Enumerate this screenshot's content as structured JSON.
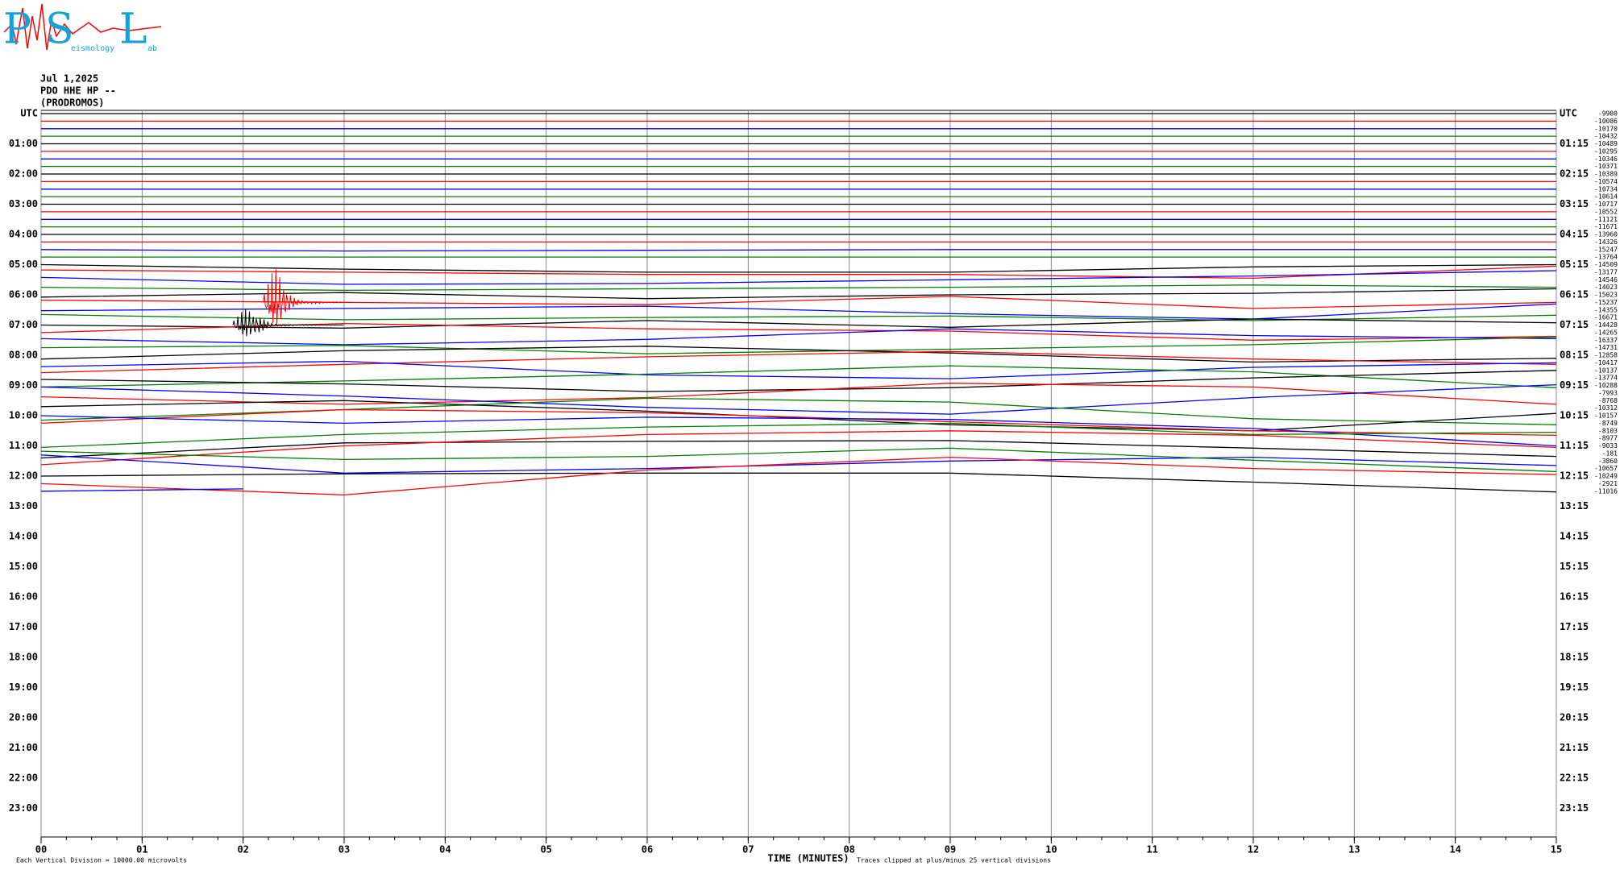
{
  "header": {
    "date": "Jul 1,2025",
    "station": "PDO HHE HP --",
    "name": "(PRODROMOS)"
  },
  "logo": {
    "letters": [
      "P",
      "S",
      "L"
    ],
    "small": [
      "eismology",
      "ab"
    ]
  },
  "chart_data": {
    "type": "helicorder",
    "xlabel": "TIME (MINUTES)",
    "note_left": "Each Vertical Division = 10000.00 microvolts",
    "note_right": "Traces clipped at plus/minus 25 vertical divisions",
    "xlim": [
      0,
      15
    ],
    "xticks": [
      {
        "value": 0,
        "label": "00"
      },
      {
        "value": 1,
        "label": "01"
      },
      {
        "value": 2,
        "label": "02"
      },
      {
        "value": 3,
        "label": "03"
      },
      {
        "value": 4,
        "label": "04"
      },
      {
        "value": 5,
        "label": "05"
      },
      {
        "value": 6,
        "label": "06"
      },
      {
        "value": 7,
        "label": "07"
      },
      {
        "value": 8,
        "label": "08"
      },
      {
        "value": 9,
        "label": "09"
      },
      {
        "value": 10,
        "label": "10"
      },
      {
        "value": 11,
        "label": "11"
      },
      {
        "value": 12,
        "label": "12"
      },
      {
        "value": 13,
        "label": "13"
      },
      {
        "value": 14,
        "label": "14"
      },
      {
        "value": 15,
        "label": "15"
      }
    ],
    "rows": 96,
    "left_labels": [
      "UTC",
      "01:00",
      "02:00",
      "03:00",
      "04:00",
      "05:00",
      "06:00",
      "07:00",
      "08:00",
      "09:00",
      "10:00",
      "11:00",
      "12:00",
      "13:00",
      "14:00",
      "15:00",
      "16:00",
      "17:00",
      "18:00",
      "19:00",
      "20:00",
      "21:00",
      "22:00",
      "23:00"
    ],
    "right_labels": [
      "UTC",
      "01:15",
      "02:15",
      "03:15",
      "04:15",
      "05:15",
      "06:15",
      "07:15",
      "08:15",
      "09:15",
      "10:15",
      "11:15",
      "12:15",
      "13:15",
      "14:15",
      "15:15",
      "16:15",
      "17:15",
      "18:15",
      "19:15",
      "20:15",
      "21:15",
      "22:15",
      "23:15"
    ],
    "trace_colors": [
      "#000000",
      "#ff0000",
      "#0000ff",
      "#007f00"
    ],
    "x": [
      0,
      3,
      6,
      9,
      12,
      15
    ],
    "traces": [
      {
        "offset": -9980,
        "values": [
          0,
          0,
          0,
          0,
          0,
          0
        ]
      },
      {
        "offset": -10086,
        "values": [
          0,
          0,
          0,
          0,
          0,
          0
        ]
      },
      {
        "offset": -10170,
        "values": [
          0,
          0,
          0,
          0,
          0,
          0
        ]
      },
      {
        "offset": -10432,
        "values": [
          0,
          0,
          0,
          0,
          0,
          0
        ]
      },
      {
        "offset": -10489,
        "values": [
          0,
          0,
          0,
          0,
          0,
          0
        ]
      },
      {
        "offset": -10295,
        "values": [
          0,
          0,
          0,
          0,
          0,
          0
        ]
      },
      {
        "offset": -10346,
        "values": [
          0,
          0,
          0,
          0,
          0,
          0
        ]
      },
      {
        "offset": -10371,
        "values": [
          0,
          0,
          0,
          0,
          0,
          0
        ]
      },
      {
        "offset": -10389,
        "values": [
          0,
          0,
          0,
          0,
          0,
          0
        ]
      },
      {
        "offset": -10574,
        "values": [
          0,
          0,
          0,
          0,
          0,
          0
        ]
      },
      {
        "offset": -10734,
        "values": [
          0,
          0,
          0,
          0,
          0,
          0
        ]
      },
      {
        "offset": -10614,
        "values": [
          0,
          0,
          0,
          0,
          0,
          0
        ]
      },
      {
        "offset": -10717,
        "values": [
          0,
          0,
          0,
          0,
          0,
          0
        ]
      },
      {
        "offset": -10552,
        "values": [
          0,
          0,
          0,
          0,
          0,
          0
        ]
      },
      {
        "offset": -11121,
        "values": [
          0,
          0,
          0,
          0,
          0,
          0
        ]
      },
      {
        "offset": -11671,
        "values": [
          0,
          0,
          0,
          0,
          0,
          0
        ]
      },
      {
        "offset": -13960,
        "values": [
          0,
          0,
          0,
          0,
          0,
          0
        ]
      },
      {
        "offset": -14326,
        "values": [
          0,
          0,
          0,
          0,
          0,
          0
        ]
      },
      {
        "offset": -15247,
        "values": [
          0,
          -0.2,
          -0.1,
          0,
          0,
          0
        ]
      },
      {
        "offset": -13764,
        "values": [
          0,
          0,
          0,
          0,
          0,
          0
        ]
      },
      {
        "offset": -14509,
        "values": [
          0,
          -0.6,
          -1,
          -1,
          -0.3,
          0
        ]
      },
      {
        "offset": -13177,
        "values": [
          0.3,
          0,
          -0.3,
          -0.3,
          -0.8,
          0.8
        ]
      },
      {
        "offset": -14546,
        "values": [
          0.3,
          -0.6,
          -0.5,
          0,
          0.5,
          1.2
        ]
      },
      {
        "offset": -14023,
        "values": [
          0,
          -0.4,
          -0.2,
          0,
          0.3,
          0
        ]
      },
      {
        "offset": -15023,
        "values": [
          -0.3,
          0.3,
          -0.5,
          0,
          0.2,
          0.8
        ]
      },
      {
        "offset": -15237,
        "values": [
          0.3,
          0,
          -0.3,
          0.8,
          -0.8,
          0
        ]
      },
      {
        "offset": -14355,
        "values": [
          -0.1,
          0.2,
          0.5,
          -0.5,
          -1.2,
          0.8
        ]
      },
      {
        "offset": -16671,
        "values": [
          0.4,
          -0.3,
          0,
          0.2,
          -0.4,
          0.3
        ]
      },
      {
        "offset": -14428,
        "values": [
          0,
          -0.4,
          0.6,
          -0.3,
          0.8,
          0.3
        ]
      },
      {
        "offset": -14265,
        "values": [
          0,
          1.2,
          0.5,
          0.2,
          -1,
          -0.5
        ]
      },
      {
        "offset": -16337,
        "values": [
          0.2,
          -0.6,
          0.1,
          1.5,
          0.6,
          0.2
        ]
      },
      {
        "offset": -14731,
        "values": [
          0,
          0.3,
          -0.8,
          -0.2,
          0.4,
          1.4
        ]
      },
      {
        "offset": -12858,
        "values": [
          -0.5,
          0.6,
          1.2,
          0.3,
          -0.9,
          -0.4
        ]
      },
      {
        "offset": -10417,
        "values": [
          -1.3,
          -0.2,
          0.8,
          1.5,
          0.5,
          -0.2
        ]
      },
      {
        "offset": -10137,
        "values": [
          0.5,
          1.2,
          -0.6,
          -1.1,
          0.4,
          1
        ]
      },
      {
        "offset": -13774,
        "values": [
          -1.2,
          -0.4,
          0.5,
          1.6,
          0.8,
          -1.3
        ]
      },
      {
        "offset": -10288,
        "values": [
          0.8,
          0.2,
          -0.8,
          -0.3,
          1,
          2
        ]
      },
      {
        "offset": -7993,
        "values": [
          -0.5,
          -1.5,
          -0.6,
          1.3,
          0.8,
          -1.5
        ]
      },
      {
        "offset": -8768,
        "values": [
          1.8,
          0.6,
          -0.9,
          -1.8,
          0.4,
          2.1
        ]
      },
      {
        "offset": -10312,
        "values": [
          -1.6,
          -0.2,
          1.3,
          0.8,
          -1.4,
          -2.2
        ]
      },
      {
        "offset": -10157,
        "values": [
          1.2,
          2,
          0.6,
          -1.2,
          -2,
          0.3
        ]
      },
      {
        "offset": -8749,
        "values": [
          0,
          1.8,
          1.4,
          0.2,
          -1,
          -1.6
        ]
      },
      {
        "offset": -8103,
        "values": [
          2,
          1,
          1.8,
          1.5,
          0.3,
          -2
        ]
      },
      {
        "offset": -8977,
        "values": [
          -1.2,
          0.5,
          1.5,
          2,
          0.5,
          0.8
        ]
      },
      {
        "offset": -9033,
        "values": [
          -1.6,
          0.4,
          0.6,
          0.7,
          -0.3,
          -1.4
        ]
      },
      {
        "offset": -181,
        "values": [
          -1.5,
          1,
          2.5,
          3,
          2.4,
          0.8
        ]
      },
      {
        "offset": -3860,
        "values": [
          0.8,
          -1.6,
          -1,
          0,
          0.5,
          -0.6
        ]
      },
      {
        "offset": -10657,
        "values": [
          2.3,
          1.2,
          1.6,
          2.7,
          1.1,
          -0.4
        ]
      },
      {
        "offset": -10249,
        "values": [
          0,
          0.3,
          0.4,
          0.4,
          -0.8,
          -2.1
        ]
      },
      {
        "offset": -2921,
        "values": [
          0,
          -1.5,
          1.8,
          3.5,
          2,
          1.2
        ]
      },
      {
        "offset": -11016,
        "x": [
          0,
          2
        ],
        "values": [
          0,
          0.3
        ]
      }
    ],
    "bursts": [
      {
        "trace": 25,
        "x": [
          2.2,
          3.1
        ],
        "amplitude": 4
      },
      {
        "trace": 28,
        "x": [
          1.9,
          3.0
        ],
        "amplitude": 2
      }
    ]
  }
}
